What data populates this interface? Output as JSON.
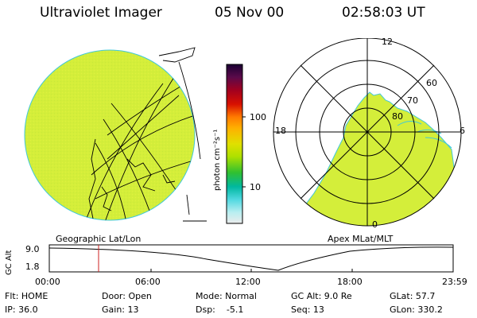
{
  "header": {
    "instrument": "Ultraviolet Imager",
    "date": "05 Nov 00",
    "time": "02:58:03 UT"
  },
  "colorbar": {
    "unit_label": "photon cm⁻²s⁻¹",
    "tick_100": "100",
    "tick_10": "10",
    "colors_top_to_bottom": [
      "#1a0033",
      "#3b0044",
      "#5a0a4a",
      "#7a0030",
      "#a00020",
      "#c80000",
      "#e0200a",
      "#ff6a00",
      "#ffaa00",
      "#e8d000",
      "#b8e000",
      "#6ad200",
      "#00c040",
      "#00b890",
      "#40d8e0",
      "#a0eef0",
      "#e0f4f4"
    ]
  },
  "geo_panel": {
    "label": "Geographic Lat/Lon",
    "fill_color": "#d4ee3a"
  },
  "polar_panel": {
    "label": "Apex MLat/MLT",
    "mlt_12": "12",
    "mlt_18": "18",
    "mlt_6": "6",
    "mlt_0": "0",
    "lat_60": "60",
    "lat_70": "70",
    "lat_80": "80"
  },
  "altitude_plot": {
    "ylabel": "GC Alt",
    "y_high": "9.0",
    "y_low": "1.8",
    "x_ticks": [
      "00:00",
      "06:00",
      "12:00",
      "18:00",
      "23:59"
    ],
    "marker_color": "#cc2222"
  },
  "status": {
    "row1": {
      "flt": "Flt: HOME",
      "door": "Door: Open",
      "mode": "Mode: Normal",
      "gc_alt": "GC Alt: 9.0 Re",
      "glat": "GLat: 57.7"
    },
    "row2": {
      "ip": "IP: 36.0",
      "gain": "Gain: 13",
      "dsp": "Dsp:    -5.1",
      "seq": "Seq: 13",
      "glon": "GLon: 330.2"
    }
  }
}
